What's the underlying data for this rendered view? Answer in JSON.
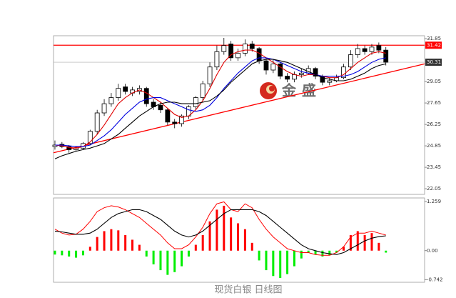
{
  "chart_data": {
    "type": "candlestick",
    "caption": "现货白银 日线图",
    "watermark": "金盛",
    "ylim": [
      21.68,
      32.04
    ],
    "yticks": [
      31.85,
      29.05,
      27.65,
      26.25,
      24.85,
      23.45,
      22.05
    ],
    "xlim": [
      -0.2,
      52.5
    ],
    "up_color": "#ffffff",
    "down_color": "#000000",
    "open": [
      24.8,
      24.95,
      24.8,
      24.6,
      24.7,
      25.0,
      25.8,
      27.0,
      27.6,
      28.0,
      28.7,
      28.3,
      28.4,
      28.6,
      27.7,
      27.5,
      27.2,
      26.4,
      26.3,
      26.8,
      27.4,
      28.0,
      28.9,
      30.0,
      31.0,
      31.5,
      30.6,
      30.9,
      31.5,
      31.2,
      30.4,
      29.8,
      30.2,
      29.4,
      29.2,
      29.5,
      29.6,
      29.9,
      29.4,
      29.0,
      29.1,
      29.3,
      30.0,
      30.8,
      31.2,
      31.0,
      31.4,
      31.1
    ],
    "high": [
      25.2,
      25.1,
      24.9,
      24.8,
      25.1,
      25.9,
      27.2,
      27.9,
      28.3,
      28.9,
      28.9,
      28.7,
      28.8,
      28.7,
      27.9,
      27.7,
      27.3,
      26.6,
      26.9,
      27.5,
      28.1,
      29.1,
      30.3,
      31.4,
      31.9,
      31.7,
      31.2,
      31.8,
      31.7,
      31.3,
      30.6,
      30.5,
      30.3,
      29.6,
      29.7,
      29.9,
      30.1,
      30.0,
      29.5,
      29.3,
      29.5,
      30.2,
      31.1,
      31.5,
      31.4,
      31.5,
      31.6,
      31.3
    ],
    "low": [
      24.6,
      24.7,
      24.4,
      24.5,
      24.6,
      24.9,
      25.6,
      26.8,
      27.4,
      27.8,
      28.2,
      28.1,
      28.2,
      27.4,
      27.2,
      27.0,
      26.2,
      26.0,
      26.1,
      26.6,
      27.2,
      27.8,
      28.7,
      29.8,
      30.8,
      30.4,
      30.4,
      30.7,
      31.0,
      30.2,
      29.5,
      29.6,
      29.2,
      29.0,
      29.0,
      29.3,
      29.5,
      29.2,
      28.8,
      28.8,
      29.0,
      29.2,
      29.8,
      30.6,
      30.8,
      30.8,
      30.9,
      30.1
    ],
    "close": [
      24.9,
      24.8,
      24.6,
      24.7,
      25.0,
      25.8,
      27.0,
      27.6,
      28.0,
      28.6,
      28.4,
      28.5,
      28.6,
      27.6,
      27.4,
      27.2,
      26.4,
      26.3,
      26.8,
      27.4,
      28.0,
      28.9,
      30.0,
      31.0,
      31.4,
      30.6,
      30.9,
      31.5,
      31.2,
      30.4,
      29.8,
      30.2,
      29.4,
      29.2,
      29.5,
      29.6,
      29.9,
      29.4,
      29.0,
      29.1,
      29.3,
      30.0,
      30.8,
      31.2,
      31.0,
      31.3,
      31.1,
      30.31
    ],
    "series": [
      {
        "color": "#e00000",
        "values": [
          24.9,
          24.85,
          24.75,
          24.7,
          24.8,
          25.1,
          25.6,
          26.2,
          26.9,
          27.6,
          28.0,
          28.3,
          28.5,
          28.3,
          28.0,
          27.7,
          27.3,
          26.9,
          26.7,
          26.8,
          27.2,
          27.8,
          28.6,
          29.5,
          30.3,
          30.8,
          31.0,
          31.1,
          31.1,
          30.9,
          30.6,
          30.3,
          30.0,
          29.7,
          29.5,
          29.4,
          29.5,
          29.5,
          29.4,
          29.3,
          29.3,
          29.5,
          29.9,
          30.3,
          30.6,
          30.9,
          31.0,
          30.9
        ]
      },
      {
        "color": "#0000e0",
        "values": [
          24.9,
          24.9,
          24.85,
          24.8,
          24.8,
          24.9,
          25.2,
          25.5,
          25.9,
          26.4,
          26.9,
          27.3,
          27.7,
          27.9,
          28.0,
          28.0,
          27.8,
          27.6,
          27.4,
          27.2,
          27.1,
          27.2,
          27.5,
          28.0,
          28.6,
          29.1,
          29.6,
          30.0,
          30.4,
          30.6,
          30.6,
          30.5,
          30.3,
          30.1,
          29.9,
          29.7,
          29.6,
          29.5,
          29.4,
          29.4,
          29.4,
          29.4,
          29.5,
          29.7,
          30.0,
          30.3,
          30.5,
          30.6
        ]
      },
      {
        "color": "#000000",
        "values": [
          24.0,
          24.2,
          24.35,
          24.5,
          24.6,
          24.7,
          24.85,
          25.0,
          25.3,
          25.6,
          26.0,
          26.4,
          26.8,
          27.1,
          27.4,
          27.6,
          27.7,
          27.7,
          27.6,
          27.6,
          27.6,
          27.7,
          27.8,
          28.1,
          28.5,
          29.0,
          29.4,
          29.8,
          30.2,
          30.4,
          30.5,
          30.5,
          30.4,
          30.3,
          30.1,
          29.9,
          29.7,
          29.5,
          29.3,
          29.2,
          29.1,
          29.1,
          29.2,
          29.4,
          29.6,
          29.9,
          30.1,
          30.2
        ]
      }
    ],
    "resistance": {
      "value": 31.42,
      "color": "#ff0000"
    },
    "last_price": {
      "value": 30.31,
      "color": "#333333"
    },
    "trendline": {
      "x": [
        -0.2,
        52.5
      ],
      "y": [
        24.4,
        30.2
      ],
      "color": "#ff0000"
    },
    "macd": {
      "ylim": [
        -0.81,
        1.35
      ],
      "yticks": [
        1.259,
        {
          "value": 0,
          "label": "0.00"
        },
        -0.742
      ],
      "pos_color": "#ff0000",
      "neg_color": "#00ee00",
      "dif_color": "#ff0000",
      "dea_color": "#000000",
      "hist": [
        -0.1,
        -0.12,
        -0.15,
        -0.18,
        -0.12,
        0.1,
        0.35,
        0.5,
        0.55,
        0.52,
        0.4,
        0.28,
        0.15,
        -0.15,
        -0.35,
        -0.5,
        -0.62,
        -0.55,
        -0.4,
        -0.15,
        0.15,
        0.4,
        0.75,
        1.05,
        1.15,
        0.85,
        0.7,
        0.55,
        0.2,
        -0.25,
        -0.5,
        -0.65,
        -0.7,
        -0.6,
        -0.4,
        -0.2,
        -0.05,
        -0.1,
        -0.15,
        -0.12,
        -0.05,
        0.1,
        0.4,
        0.5,
        0.4,
        0.45,
        0.2,
        -0.05
      ],
      "dif": [
        0.55,
        0.45,
        0.4,
        0.42,
        0.55,
        0.75,
        1.0,
        1.1,
        1.15,
        1.12,
        1.05,
        0.95,
        0.85,
        0.7,
        0.55,
        0.4,
        0.2,
        0.05,
        0.05,
        0.15,
        0.35,
        0.6,
        0.95,
        1.2,
        1.25,
        1.05,
        1.0,
        1.2,
        1.1,
        0.8,
        0.55,
        0.35,
        0.2,
        0.05,
        0.0,
        -0.05,
        -0.05,
        -0.1,
        -0.12,
        -0.12,
        -0.05,
        0.1,
        0.35,
        0.45,
        0.45,
        0.5,
        0.45,
        0.4
      ],
      "dea": [
        0.5,
        0.48,
        0.45,
        0.42,
        0.42,
        0.45,
        0.55,
        0.7,
        0.85,
        0.95,
        1.0,
        1.05,
        1.05,
        1.0,
        0.9,
        0.8,
        0.65,
        0.5,
        0.4,
        0.35,
        0.4,
        0.5,
        0.65,
        0.8,
        0.95,
        1.05,
        1.05,
        1.05,
        1.05,
        1.0,
        0.9,
        0.75,
        0.6,
        0.45,
        0.3,
        0.15,
        0.05,
        0.0,
        -0.05,
        -0.08,
        -0.1,
        -0.05,
        0.05,
        0.15,
        0.25,
        0.32,
        0.36,
        0.38
      ]
    }
  }
}
